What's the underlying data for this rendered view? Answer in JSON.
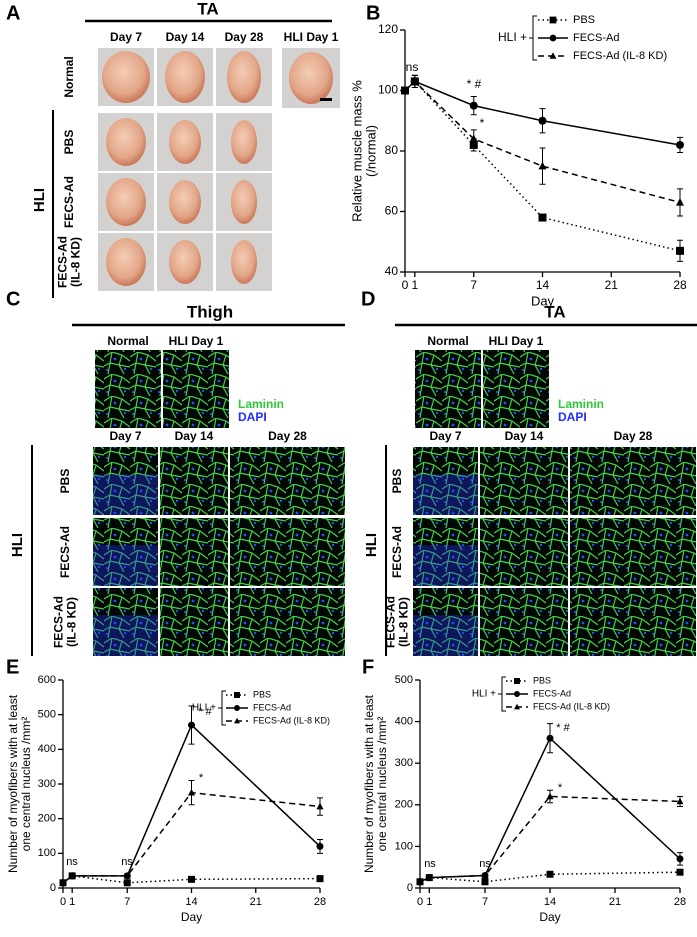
{
  "panels": {
    "A": {
      "label": "A",
      "title": "TA",
      "columns": [
        "Day 7",
        "Day 14",
        "Day 28",
        "HLI Day 1"
      ],
      "rows": [
        [
          "Normal"
        ],
        [
          "PBS"
        ],
        [
          "FECS-Ad"
        ],
        [
          "FECS-Ad",
          "(IL-8 KD)"
        ]
      ],
      "group": "HLI"
    },
    "C": {
      "label": "C",
      "title": "Thigh",
      "top_columns": [
        "Normal",
        "HLI Day 1"
      ],
      "stains": [
        "Laminin",
        "DAPI"
      ],
      "columns": [
        "Day 7",
        "Day 14",
        "Day 28"
      ],
      "rows": [
        [
          "PBS"
        ],
        [
          "FECS-Ad"
        ],
        [
          "FECS-Ad",
          "(IL-8 KD)"
        ]
      ],
      "group": "HLI"
    },
    "D": {
      "label": "D",
      "title": "TA",
      "top_columns": [
        "Normal",
        "HLI Day 1"
      ],
      "stains": [
        "Laminin",
        "DAPI"
      ],
      "columns": [
        "Day 7",
        "Day 14",
        "Day 28"
      ],
      "rows": [
        [
          "PBS"
        ],
        [
          "FECS-Ad"
        ],
        [
          "FECS-Ad",
          "(IL-8 KD)"
        ]
      ],
      "group": "HLI"
    }
  },
  "chart_data": [
    {
      "panel": "B",
      "type": "line",
      "x": [
        0,
        1,
        7,
        14,
        28
      ],
      "xlim": [
        0,
        28
      ],
      "xticks": [
        0,
        1,
        7,
        14,
        21,
        28
      ],
      "ylim": [
        40,
        120
      ],
      "yticks": [
        40,
        60,
        80,
        100,
        120
      ],
      "x_label": "Day",
      "y_label": [
        "Relative muscle mass %",
        "(/normal)"
      ],
      "legend_title": "HLI +",
      "series": [
        {
          "name": "PBS",
          "color": "#000000",
          "marker": "square",
          "linestyle": "dotted",
          "values": [
            100,
            103,
            82,
            58,
            47
          ],
          "errors": [
            0,
            2,
            2,
            1,
            3.5
          ]
        },
        {
          "name": "FECS-Ad",
          "color": "#000000",
          "marker": "circle",
          "linestyle": "solid",
          "values": [
            100,
            103,
            95,
            90,
            82
          ],
          "errors": [
            0,
            2,
            3,
            4,
            2.5
          ]
        },
        {
          "name": "FECS-Ad (IL-8 KD)",
          "color": "#000000",
          "marker": "triangle",
          "linestyle": "dashed",
          "values": [
            100,
            103,
            84,
            75,
            63
          ],
          "errors": [
            0,
            2,
            3,
            6,
            4.5
          ]
        }
      ],
      "annotations": [
        "ns",
        "* #",
        "*"
      ]
    },
    {
      "panel": "E",
      "type": "line",
      "x": [
        0,
        1,
        7,
        14,
        28
      ],
      "xlim": [
        0,
        28
      ],
      "xticks": [
        0,
        1,
        7,
        14,
        21,
        28
      ],
      "ylim": [
        0,
        600
      ],
      "yticks": [
        0,
        100,
        200,
        300,
        400,
        500,
        600
      ],
      "x_label": "Day",
      "y_label": [
        "Number of myofibers with at least",
        "one central nucleus /mm²"
      ],
      "legend_title": "HLI +",
      "series": [
        {
          "name": "PBS",
          "color": "#000000",
          "marker": "square",
          "linestyle": "dotted",
          "values": [
            15,
            35,
            15,
            25,
            27
          ],
          "errors": [
            0,
            3,
            3,
            3,
            3
          ]
        },
        {
          "name": "FECS-Ad",
          "color": "#000000",
          "marker": "circle",
          "linestyle": "solid",
          "values": [
            15,
            35,
            35,
            470,
            120
          ],
          "errors": [
            0,
            5,
            5,
            55,
            20
          ]
        },
        {
          "name": "FECS-Ad (IL-8 KD)",
          "color": "#000000",
          "marker": "triangle",
          "linestyle": "dashed",
          "values": [
            15,
            35,
            35,
            275,
            235
          ],
          "errors": [
            0,
            5,
            5,
            35,
            25
          ]
        }
      ],
      "annotations": [
        "ns",
        "ns",
        "* #",
        "*"
      ]
    },
    {
      "panel": "F",
      "type": "line",
      "x": [
        0,
        1,
        7,
        14,
        28
      ],
      "xlim": [
        0,
        28
      ],
      "xticks": [
        0,
        1,
        7,
        14,
        21,
        28
      ],
      "ylim": [
        0,
        500
      ],
      "yticks": [
        0,
        100,
        200,
        300,
        400,
        500
      ],
      "x_label": "Day",
      "y_label": [
        "Number of myofibers with at least",
        "one central nucleus /mm²"
      ],
      "legend_title": "HLI +",
      "series": [
        {
          "name": "PBS",
          "color": "#000000",
          "marker": "square",
          "linestyle": "dotted",
          "values": [
            15,
            25,
            15,
            33,
            38
          ],
          "errors": [
            0,
            2,
            2,
            3,
            4
          ]
        },
        {
          "name": "FECS-Ad",
          "color": "#000000",
          "marker": "circle",
          "linestyle": "solid",
          "values": [
            15,
            25,
            30,
            360,
            70
          ],
          "errors": [
            0,
            3,
            3,
            35,
            15
          ]
        },
        {
          "name": "FECS-Ad (IL-8 KD)",
          "color": "#000000",
          "marker": "triangle",
          "linestyle": "dashed",
          "values": [
            15,
            25,
            30,
            220,
            208
          ],
          "errors": [
            0,
            3,
            3,
            15,
            12
          ]
        }
      ],
      "annotations": [
        "ns",
        "ns",
        "* #",
        "*"
      ]
    }
  ]
}
